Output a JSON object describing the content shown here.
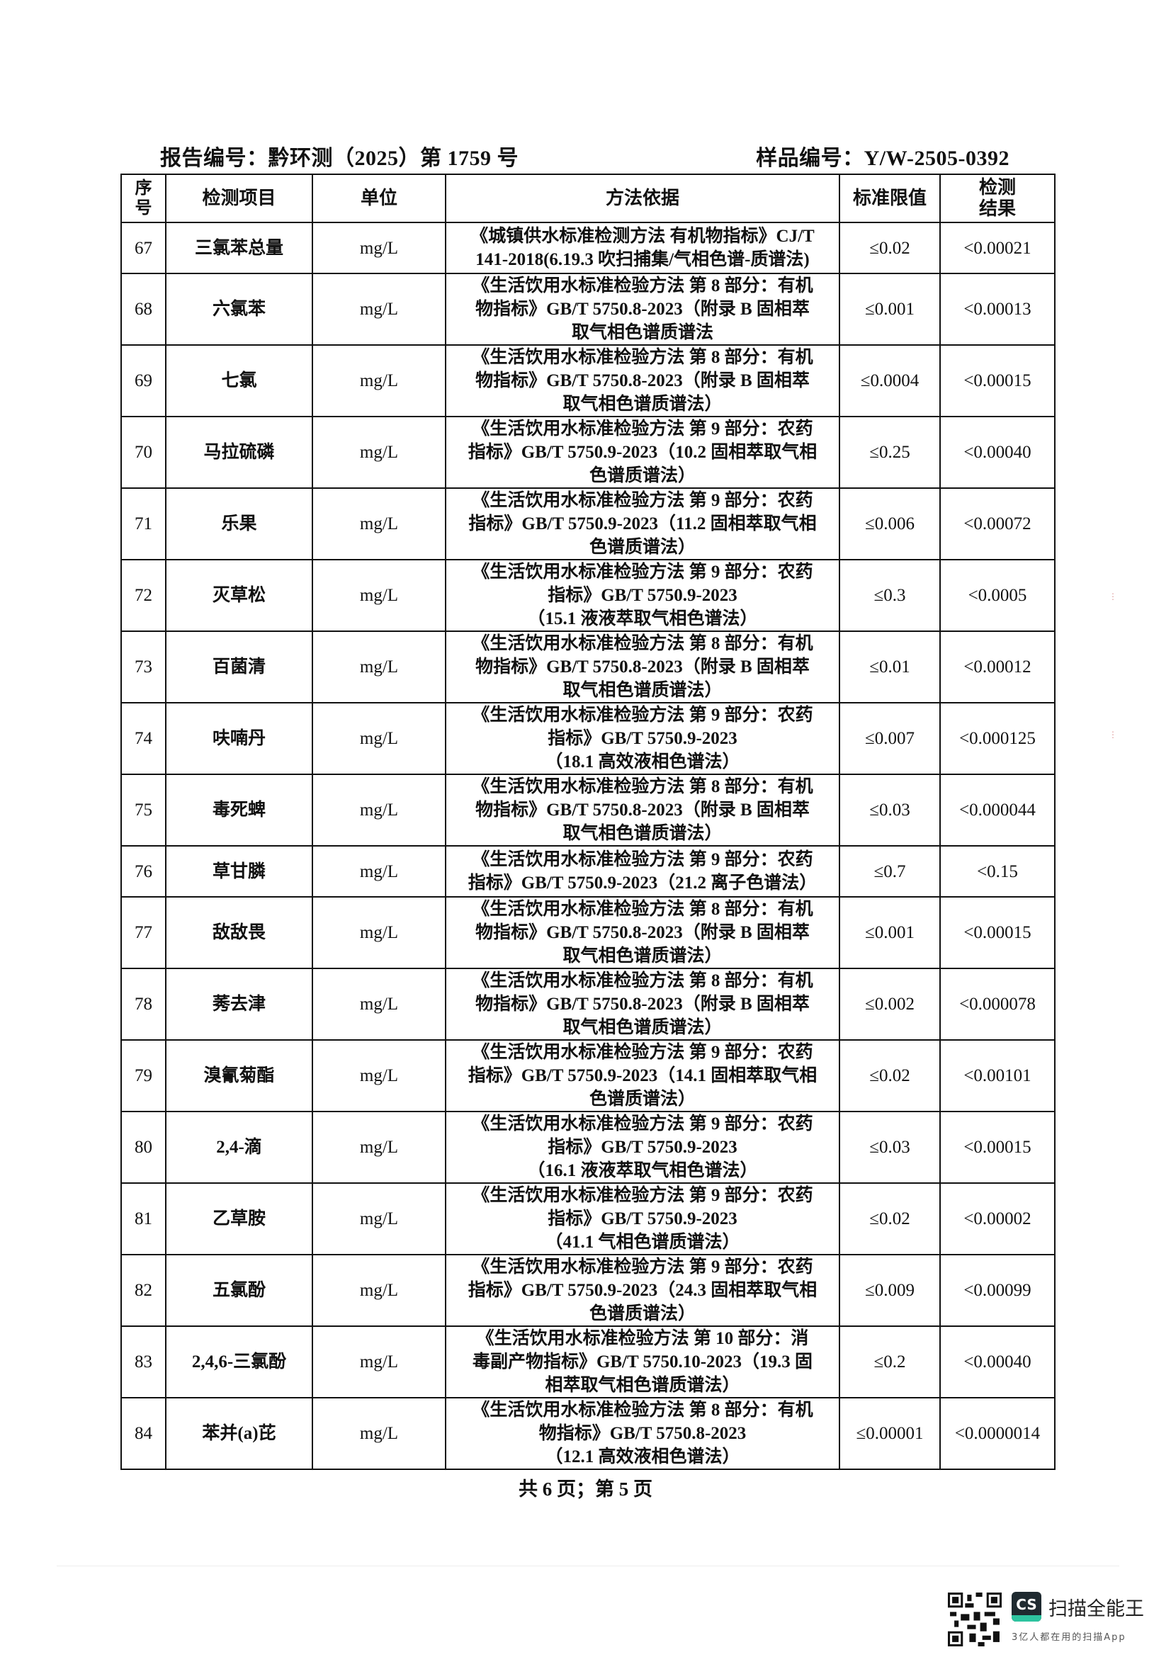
{
  "header": {
    "report_no": "报告编号：黔环测（2025）第 1759 号",
    "sample_no": "样品编号：Y/W-2505-0392"
  },
  "table": {
    "columns": [
      "序号",
      "检测项目",
      "单位",
      "方法依据",
      "标准限值",
      "检测结果"
    ],
    "rows": [
      {
        "no": "67",
        "item": "三氯苯总量",
        "unit": "mg/L",
        "method": [
          "《城镇供水标准检测方法 有机物指标》CJ/T",
          "141-2018(6.19.3 吹扫捕集/气相色谱-质谱法)"
        ],
        "limit": "≤0.02",
        "result": "<0.00021"
      },
      {
        "no": "68",
        "item": "六氯苯",
        "unit": "mg/L",
        "method": [
          "《生活饮用水标准检验方法 第 8 部分：有机",
          "物指标》GB/T 5750.8-2023（附录 B 固相萃",
          "取气相色谱质谱法"
        ],
        "limit": "≤0.001",
        "result": "<0.00013"
      },
      {
        "no": "69",
        "item": "七氯",
        "unit": "mg/L",
        "method": [
          "《生活饮用水标准检验方法 第 8 部分：有机",
          "物指标》GB/T 5750.8-2023（附录 B 固相萃",
          "取气相色谱质谱法）"
        ],
        "limit": "≤0.0004",
        "result": "<0.00015"
      },
      {
        "no": "70",
        "item": "马拉硫磷",
        "unit": "mg/L",
        "method": [
          "《生活饮用水标准检验方法 第 9 部分：农药",
          "指标》GB/T 5750.9-2023（10.2 固相萃取气相",
          "色谱质谱法）"
        ],
        "limit": "≤0.25",
        "result": "<0.00040"
      },
      {
        "no": "71",
        "item": "乐果",
        "unit": "mg/L",
        "method": [
          "《生活饮用水标准检验方法 第 9 部分：农药",
          "指标》GB/T 5750.9-2023（11.2 固相萃取气相",
          "色谱质谱法）"
        ],
        "limit": "≤0.006",
        "result": "<0.00072"
      },
      {
        "no": "72",
        "item": "灭草松",
        "unit": "mg/L",
        "method": [
          "《生活饮用水标准检验方法 第 9 部分：农药",
          "指标》GB/T 5750.9-2023",
          "（15.1 液液萃取气相色谱法）"
        ],
        "limit": "≤0.3",
        "result": "<0.0005"
      },
      {
        "no": "73",
        "item": "百菌清",
        "unit": "mg/L",
        "method": [
          "《生活饮用水标准检验方法 第 8 部分：有机",
          "物指标》GB/T 5750.8-2023（附录 B 固相萃",
          "取气相色谱质谱法）"
        ],
        "limit": "≤0.01",
        "result": "<0.00012"
      },
      {
        "no": "74",
        "item": "呋喃丹",
        "unit": "mg/L",
        "method": [
          "《生活饮用水标准检验方法 第 9 部分：农药",
          "指标》GB/T 5750.9-2023",
          "（18.1 高效液相色谱法）"
        ],
        "limit": "≤0.007",
        "result": "<0.000125"
      },
      {
        "no": "75",
        "item": "毒死蜱",
        "unit": "mg/L",
        "method": [
          "《生活饮用水标准检验方法 第 8 部分：有机",
          "物指标》GB/T 5750.8-2023（附录 B 固相萃",
          "取气相色谱质谱法）"
        ],
        "limit": "≤0.03",
        "result": "<0.000044"
      },
      {
        "no": "76",
        "item": "草甘膦",
        "unit": "mg/L",
        "method": [
          "《生活饮用水标准检验方法 第 9 部分：农药",
          "指标》GB/T 5750.9-2023（21.2 离子色谱法）"
        ],
        "limit": "≤0.7",
        "result": "<0.15"
      },
      {
        "no": "77",
        "item": "敌敌畏",
        "unit": "mg/L",
        "method": [
          "《生活饮用水标准检验方法 第 8 部分：有机",
          "物指标》GB/T 5750.8-2023（附录 B 固相萃",
          "取气相色谱质谱法）"
        ],
        "limit": "≤0.001",
        "result": "<0.00015"
      },
      {
        "no": "78",
        "item": "莠去津",
        "unit": "mg/L",
        "method": [
          "《生活饮用水标准检验方法 第 8 部分：有机",
          "物指标》GB/T 5750.8-2023（附录 B 固相萃",
          "取气相色谱质谱法）"
        ],
        "limit": "≤0.002",
        "result": "<0.000078"
      },
      {
        "no": "79",
        "item": "溴氰菊酯",
        "unit": "mg/L",
        "method": [
          "《生活饮用水标准检验方法 第 9 部分：农药",
          "指标》GB/T 5750.9-2023（14.1 固相萃取气相",
          "色谱质谱法）"
        ],
        "limit": "≤0.02",
        "result": "<0.00101"
      },
      {
        "no": "80",
        "item": "2,4-滴",
        "unit": "mg/L",
        "method": [
          "《生活饮用水标准检验方法 第 9 部分：农药",
          "指标》GB/T 5750.9-2023",
          "（16.1 液液萃取气相色谱法）"
        ],
        "limit": "≤0.03",
        "result": "<0.00015"
      },
      {
        "no": "81",
        "item": "乙草胺",
        "unit": "mg/L",
        "method": [
          "《生活饮用水标准检验方法 第 9 部分：农药",
          "指标》GB/T 5750.9-2023",
          "（41.1 气相色谱质谱法）"
        ],
        "limit": "≤0.02",
        "result": "<0.00002"
      },
      {
        "no": "82",
        "item": "五氯酚",
        "unit": "mg/L",
        "method": [
          "《生活饮用水标准检验方法 第 9 部分：农药",
          "指标》GB/T 5750.9-2023（24.3 固相萃取气相",
          "色谱质谱法）"
        ],
        "limit": "≤0.009",
        "result": "<0.00099"
      },
      {
        "no": "83",
        "item": "2,4,6-三氯酚",
        "unit": "mg/L",
        "method": [
          "《生活饮用水标准检验方法 第 10 部分：消",
          "毒副产物指标》GB/T 5750.10-2023（19.3 固",
          "相萃取气相色谱质谱法）"
        ],
        "limit": "≤0.2",
        "result": "<0.00040"
      },
      {
        "no": "84",
        "item": "苯并(a)芘",
        "unit": "mg/L",
        "method": [
          "《生活饮用水标准检验方法 第 8 部分：有机",
          "物指标》GB/T 5750.8-2023",
          "（12.1 高效液相色谱法）"
        ],
        "limit": "≤0.00001",
        "result": "<0.0000014"
      }
    ]
  },
  "footer": {
    "page": "共 6 页；第 5 页"
  },
  "watermark": {
    "app_name": "扫描全能王",
    "logo_text": "CS",
    "slogan": "3亿人都在用的扫描App",
    "brand_color": "#2ec4a0"
  }
}
